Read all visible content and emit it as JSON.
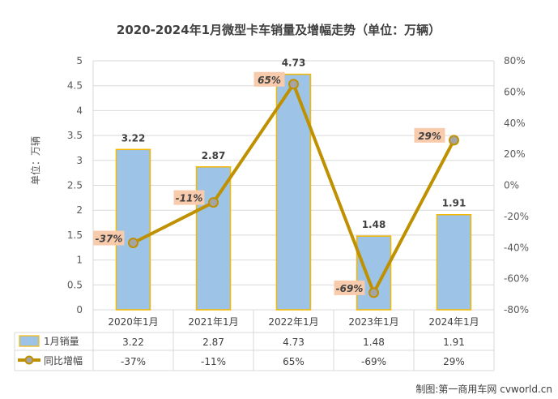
{
  "chart_data": {
    "type": "bar",
    "title": "2020-2024年1月微型卡车销量及增幅走势（单位：万辆）",
    "ylabel": "单位：万辆",
    "categories": [
      "2020年1月",
      "2021年1月",
      "2022年1月",
      "2023年1月",
      "2024年1月"
    ],
    "series": [
      {
        "name": "1月销量",
        "kind": "bar",
        "axis": "left",
        "values": [
          3.22,
          2.87,
          4.73,
          1.48,
          1.91
        ],
        "labels": [
          "3.22",
          "2.87",
          "4.73",
          "1.48",
          "1.91"
        ],
        "color": "#9dc3e6",
        "edge": "#f5b800"
      },
      {
        "name": "同比增幅",
        "kind": "line",
        "axis": "right",
        "values": [
          -37,
          -11,
          65,
          -69,
          29
        ],
        "labels": [
          "-37%",
          "-11%",
          "65%",
          "-69%",
          "29%"
        ],
        "color": "#bf9000",
        "marker": "#a5a5a5",
        "label_bg": "#f8cbad"
      }
    ],
    "y_left": {
      "min": 0,
      "max": 5,
      "step": 0.5,
      "ticks": [
        "0",
        "0.5",
        "1",
        "1.5",
        "2",
        "2.5",
        "3",
        "3.5",
        "4",
        "4.5",
        "5"
      ]
    },
    "y_right": {
      "min": -80,
      "max": 80,
      "step": 20,
      "ticks": [
        "-80%",
        "-60%",
        "-40%",
        "-20%",
        "0%",
        "20%",
        "40%",
        "60%",
        "80%"
      ]
    },
    "grid": true,
    "legend": "data-table-below"
  },
  "source": "制图:第一商用车网 cvworld.cn"
}
